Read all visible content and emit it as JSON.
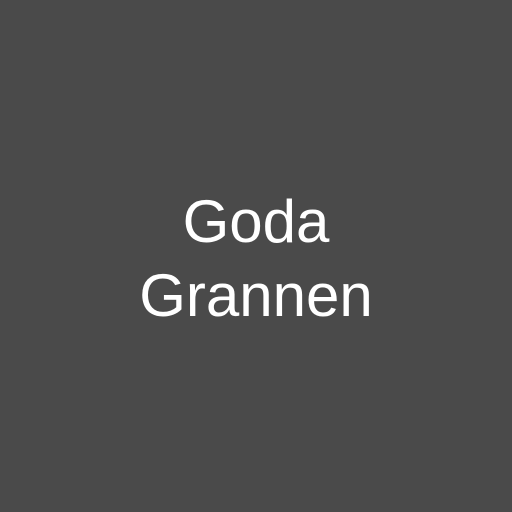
{
  "tile": {
    "lines": [
      "Goda",
      "Grannen"
    ],
    "background_color": "#4a4a4a",
    "text_color": "#ffffff"
  }
}
